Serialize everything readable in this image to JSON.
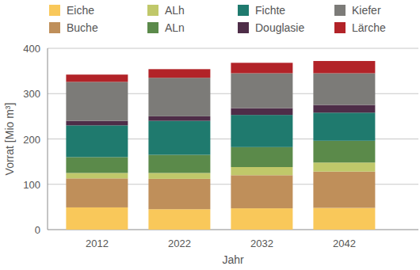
{
  "chart_data": {
    "type": "bar",
    "stacked": true,
    "grid": true,
    "legend": "top",
    "x_label": "Jahr",
    "y_label": "Vorrat [Mio m³]",
    "categories": [
      "2012",
      "2022",
      "2032",
      "2042"
    ],
    "ylim": [
      0,
      400
    ],
    "yticks": [
      0,
      100,
      200,
      300,
      400
    ],
    "series": [
      {
        "name": "Eiche",
        "color": "#f9c85a",
        "values": [
          49,
          45,
          47,
          48
        ]
      },
      {
        "name": "Buche",
        "color": "#bf8f5a",
        "values": [
          64,
          67,
          73,
          80
        ]
      },
      {
        "name": "ALh",
        "color": "#c0c86a",
        "values": [
          12,
          13,
          18,
          20
        ]
      },
      {
        "name": "ALn",
        "color": "#5b8a4a",
        "values": [
          35,
          40,
          44,
          48
        ]
      },
      {
        "name": "Fichte",
        "color": "#1f7a6e",
        "values": [
          70,
          75,
          71,
          62
        ]
      },
      {
        "name": "Douglasie",
        "color": "#4e2d48",
        "values": [
          10,
          10,
          15,
          17
        ]
      },
      {
        "name": "Kiefer",
        "color": "#7c7b78",
        "values": [
          86,
          85,
          77,
          70
        ]
      },
      {
        "name": "Lärche",
        "color": "#b22328",
        "values": [
          16,
          19,
          23,
          27
        ]
      }
    ]
  }
}
